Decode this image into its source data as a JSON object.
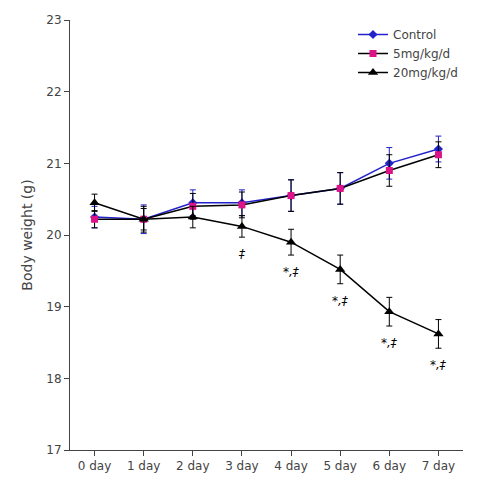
{
  "chart_data": {
    "type": "line",
    "categories": [
      "0 day",
      "1 day",
      "2 day",
      "3 day",
      "4 day",
      "5 day",
      "6 day",
      "7 day"
    ],
    "ylabel": "Body weight (g)",
    "ylim": [
      17,
      23
    ],
    "yticks": [
      17,
      18,
      19,
      20,
      21,
      22,
      23
    ],
    "grid": false,
    "legend": "upper right",
    "series": [
      {
        "name": "Control",
        "color": "#2222cc",
        "marker": "diamond",
        "values": [
          20.25,
          20.22,
          20.45,
          20.45,
          20.55,
          20.65,
          21.0,
          21.2
        ],
        "errors": [
          0.15,
          0.2,
          0.18,
          0.18,
          0.22,
          0.22,
          0.22,
          0.18
        ]
      },
      {
        "name": "5mg/kg/d",
        "color": "#000000",
        "marker": "square",
        "colors": [
          "#dd1188",
          "#dd1188",
          "#dd1188",
          "#dd1188",
          "#dd1188",
          "#dd1188",
          "#dd1188",
          "#dd1188"
        ],
        "values": [
          20.22,
          20.22,
          20.4,
          20.42,
          20.55,
          20.65,
          20.9,
          21.12
        ],
        "errors": [
          0.12,
          0.18,
          0.18,
          0.18,
          0.22,
          0.22,
          0.22,
          0.18
        ]
      },
      {
        "name": "20mg/kg/d",
        "color": "#000000",
        "marker": "triangle-up",
        "values": [
          20.45,
          20.22,
          20.25,
          20.12,
          19.9,
          19.52,
          18.93,
          18.62
        ],
        "errors": [
          0.12,
          0.15,
          0.15,
          0.15,
          0.18,
          0.2,
          0.2,
          0.2
        ]
      }
    ],
    "annotations": [
      {
        "x": "3 day",
        "text": "‡",
        "series": "20mg/kg/d"
      },
      {
        "x": "4 day",
        "text": "*,‡",
        "series": "20mg/kg/d"
      },
      {
        "x": "5 day",
        "text": "*,‡",
        "series": "20mg/kg/d"
      },
      {
        "x": "6 day",
        "text": "*,‡",
        "series": "20mg/kg/d"
      },
      {
        "x": "7 day",
        "text": "*,‡",
        "series": "20mg/kg/d"
      }
    ]
  }
}
